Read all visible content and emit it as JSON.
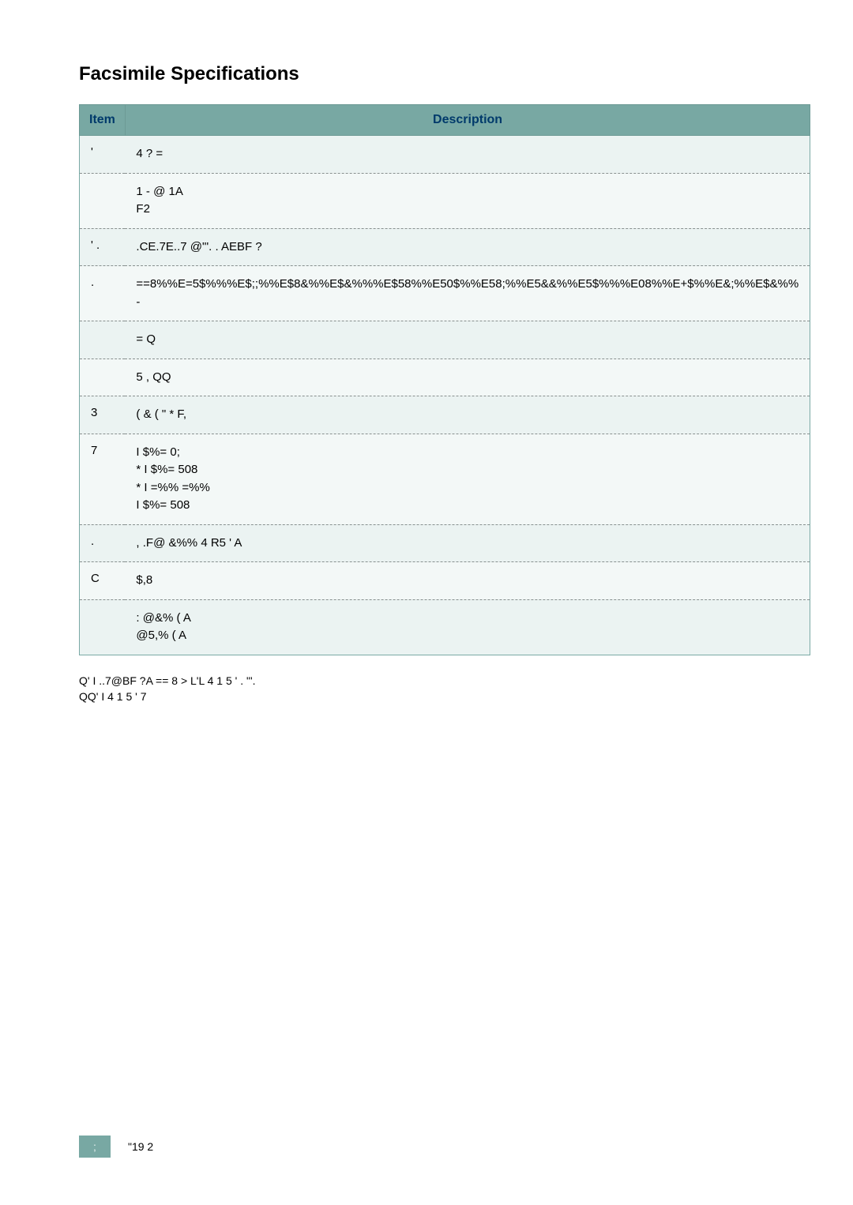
{
  "title": "Facsimile Specifications",
  "table": {
    "headers": {
      "item": "Item",
      "desc": "Description"
    },
    "rows": [
      {
        "item": "'",
        "desc": "4  ?    ="
      },
      {
        "item": "",
        "desc": "                           1    - @   1A\n   F2"
      },
      {
        "item": "'      .",
        "desc": ".CE.7E..7 @\"'. .   AEBF ?"
      },
      {
        "item": ".",
        "desc": "==8%%E=5$%%%E$;;%%E$8&%%E$&%%%E$58%%E50$%%E58;%%E5&&%%E5$%%%E08%%E+$%%E&;%%E$&%%                 -"
      },
      {
        "item": "",
        "desc": "   =              Q"
      },
      {
        "item": "",
        "desc": "   5 ,            QQ"
      },
      {
        "item": "        3",
        "desc": "(      &  (     \"       *      F,"
      },
      {
        "item": "7",
        "desc": "        I $%=   0;\n*   I $%=   508\n    *   I =%%   =%%\n   I $%=   508"
      },
      {
        "item": ".",
        "desc": ", .F@       &%%            4  R5 '    A"
      },
      {
        "item": "C",
        "desc": "$,8"
      },
      {
        "item": "",
        "desc": ":             @&% (       A\n           @5,% (       A"
      }
    ]
  },
  "footnotes": "Q'       I                 ..7@BF ?A  == 8 >         L'L      4  1 5 '      .         \"'.\nQQ'       I  4  1 5 '            7",
  "footer": {
    "page_badge": ";",
    "page_text": "\"19 2"
  },
  "colors": {
    "header_bg": "#78a8a3",
    "header_text": "#003a6b",
    "row_bg": "#ebf3f2",
    "row_alt_bg": "#f3f8f7",
    "border": "#7aa9a5",
    "dash": "#88908f"
  }
}
